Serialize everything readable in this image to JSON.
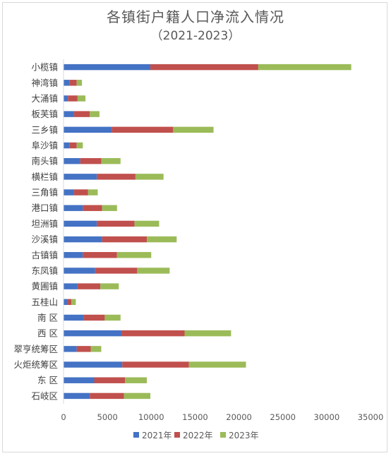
{
  "chart_data": {
    "type": "bar",
    "orientation": "horizontal",
    "stacked": true,
    "title": "各镇街户籍人口净流入情况",
    "subtitle": "（2021-2023）",
    "categories": [
      "小榄镇",
      "神湾镇",
      "大涌镇",
      "板芙镇",
      "三乡镇",
      "阜沙镇",
      "南头镇",
      "横栏镇",
      "三角镇",
      "港口镇",
      "坦洲镇",
      "沙溪镇",
      "古镇镇",
      "东凤镇",
      "黄圃镇",
      "五桂山",
      "南  区",
      "西  区",
      "翠亨统筹区",
      "火炬统筹区",
      "东  区",
      "石岐区"
    ],
    "series": [
      {
        "name": "2021年",
        "color": "#4472c4",
        "values": [
          9900,
          700,
          500,
          1200,
          5500,
          700,
          1900,
          3800,
          1200,
          2200,
          3800,
          4400,
          2200,
          3600,
          1600,
          400,
          2300,
          6600,
          1500,
          6700,
          3500,
          3000
        ]
      },
      {
        "name": "2022年",
        "color": "#c0504d",
        "values": [
          12300,
          800,
          1100,
          1800,
          7000,
          800,
          2400,
          4400,
          1600,
          2200,
          4300,
          5100,
          3900,
          4800,
          2600,
          500,
          2400,
          7200,
          1600,
          7600,
          3500,
          3900
        ]
      },
      {
        "name": "2023年",
        "color": "#9bbb59",
        "values": [
          10600,
          600,
          900,
          1100,
          4600,
          700,
          2200,
          3200,
          1100,
          1700,
          2800,
          3400,
          3900,
          3700,
          2100,
          500,
          1800,
          5300,
          1200,
          6500,
          2500,
          3000
        ]
      }
    ],
    "xlim": [
      0,
      35000
    ],
    "xticks": [
      "0",
      "5000",
      "10000",
      "15000",
      "20000",
      "25000",
      "30000",
      "35000"
    ],
    "xlabel": "",
    "ylabel": "",
    "grid": false,
    "legend": "bottom"
  }
}
